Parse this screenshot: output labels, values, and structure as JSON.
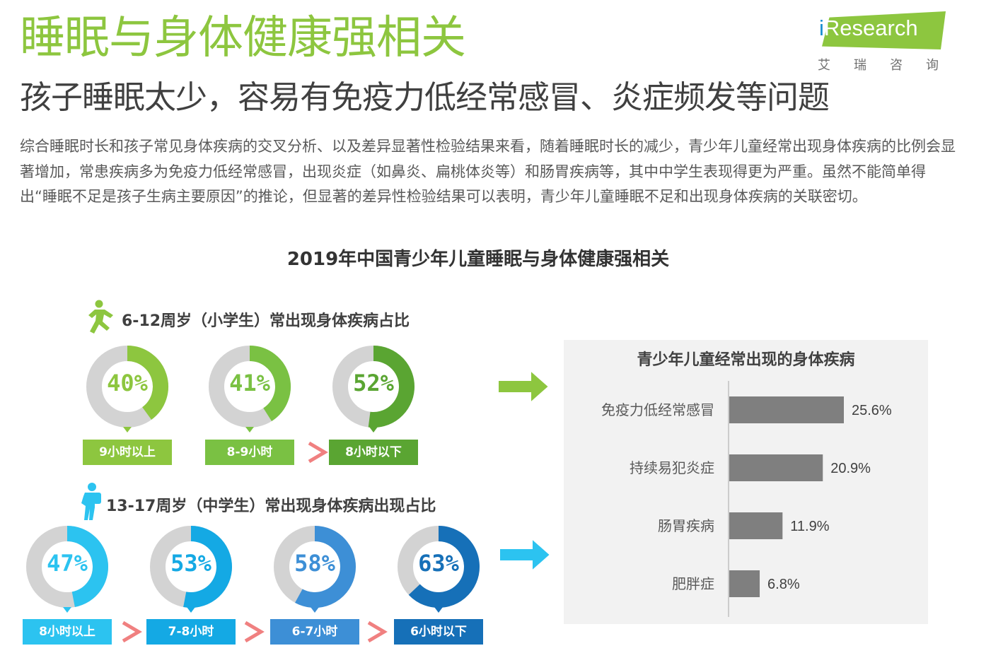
{
  "header": {
    "title": "睡眠与身体健康强相关",
    "subtitle": "孩子睡眠太少，容易有免疫力低经常感冒、炎症频发等问题",
    "body": "综合睡眠时长和孩子常见身体疾病的交叉分析、以及差异显著性检验结果来看，随着睡眠时长的减少，青少年儿童经常出现身体疾病的比例会显著增加，常患疾病多为免疫力低经常感冒，出现炎症（如鼻炎、扁桃体炎等）和肠胃疾病等，其中中学生表现得更为严重。虽然不能简单得出“睡眠不足是孩子生病主要原因”的推论，但显著的差异性检验结果可以表明，青少年儿童睡眠不足和出现身体疾病的关联密切。"
  },
  "logo": {
    "word_i": "i",
    "word_rest": "Research",
    "sub": "艾瑞咨询"
  },
  "chart_title": "2019年中国青少年儿童睡眠与身体健康强相关",
  "chart_data": [
    {
      "type": "donut",
      "title": "6-12周岁（小学生）常出现身体疾病占比",
      "icon": "running-child-icon",
      "color_track": "#d3d3d3",
      "separator": ">",
      "items": [
        {
          "pct": 40,
          "pct_label": "40%",
          "category": "9小时以上",
          "color": "#8dc63f"
        },
        {
          "pct": 41,
          "pct_label": "41%",
          "category": "8-9小时",
          "color": "#7ac143"
        },
        {
          "pct": 52,
          "pct_label": "52%",
          "category": "8小时以下",
          "color": "#5aa532"
        }
      ]
    },
    {
      "type": "donut",
      "title": "13-17周岁（中学生）常出现身体疾病出现占比",
      "icon": "student-backpack-icon",
      "color_track": "#d3d3d3",
      "separator": ">",
      "items": [
        {
          "pct": 47,
          "pct_label": "47%",
          "category": "8小时以上",
          "color": "#2cc3f0"
        },
        {
          "pct": 53,
          "pct_label": "53%",
          "category": "7-8小时",
          "color": "#14a9e4"
        },
        {
          "pct": 58,
          "pct_label": "58%",
          "category": "6-7小时",
          "color": "#3d8fd6"
        },
        {
          "pct": 63,
          "pct_label": "63%",
          "category": "6小时以下",
          "color": "#1670b8"
        }
      ]
    },
    {
      "type": "bar",
      "orientation": "horizontal",
      "title": "青少年儿童经常出现的身体疾病",
      "categories": [
        "免疫力低经常感冒",
        "持续易犯炎症",
        "肠胃疾病",
        "肥胖症"
      ],
      "values": [
        25.6,
        20.9,
        11.9,
        6.8
      ],
      "value_labels": [
        "25.6%",
        "20.9%",
        "11.9%",
        "6.8%"
      ],
      "xlim": [
        0,
        30
      ],
      "bar_color": "#7f7f7f"
    }
  ],
  "colors": {
    "green_arrow": "#8dc63f",
    "blue_arrow": "#2cc3f0",
    "separator": "#f08080"
  }
}
